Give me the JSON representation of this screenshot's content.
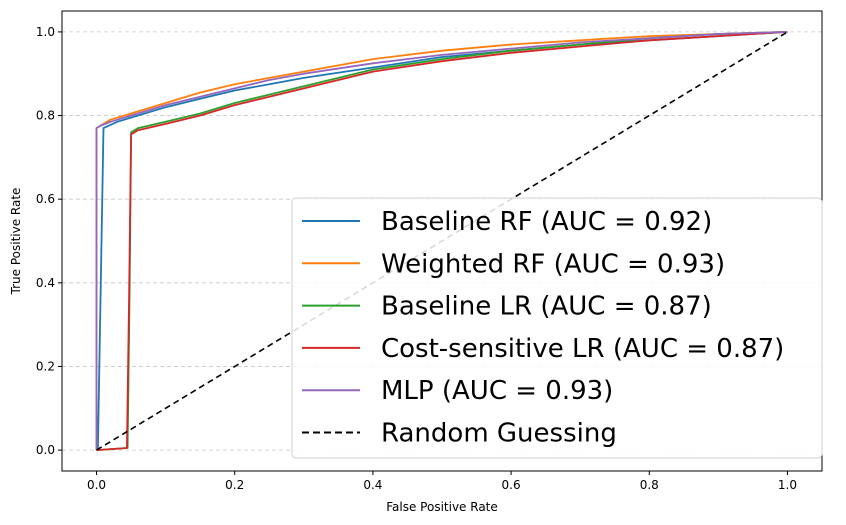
{
  "chart_data": {
    "type": "line",
    "xlabel": "False Positive Rate",
    "ylabel": "True Positive Rate",
    "xlim": [
      -0.05,
      1.05
    ],
    "ylim": [
      -0.05,
      1.05
    ],
    "xticks": [
      "0.0",
      "0.2",
      "0.4",
      "0.6",
      "0.8",
      "1.0"
    ],
    "yticks": [
      "0.0",
      "0.2",
      "0.4",
      "0.6",
      "0.8",
      "1.0"
    ],
    "grid": "horizontal dashed",
    "legend_position": "lower-right",
    "series": [
      {
        "name": "Baseline RF (AUC = 0.92)",
        "color": "#1f77b4",
        "x": [
          0,
          0.002,
          0.01,
          0.03,
          0.06,
          0.1,
          0.15,
          0.2,
          0.25,
          0.3,
          0.4,
          0.5,
          0.6,
          0.7,
          0.8,
          0.9,
          1.0
        ],
        "y": [
          0,
          0.005,
          0.77,
          0.785,
          0.8,
          0.82,
          0.84,
          0.86,
          0.875,
          0.89,
          0.915,
          0.94,
          0.955,
          0.97,
          0.98,
          0.99,
          1.0
        ]
      },
      {
        "name": "Weighted RF (AUC = 0.93)",
        "color": "#ff7f0e",
        "x": [
          0,
          0.0,
          0.005,
          0.02,
          0.05,
          0.1,
          0.15,
          0.2,
          0.25,
          0.3,
          0.4,
          0.5,
          0.6,
          0.7,
          0.8,
          0.9,
          1.0
        ],
        "y": [
          0,
          0.77,
          0.775,
          0.79,
          0.805,
          0.83,
          0.855,
          0.875,
          0.89,
          0.905,
          0.935,
          0.955,
          0.97,
          0.98,
          0.99,
          0.995,
          1.0
        ]
      },
      {
        "name": "Baseline LR (AUC = 0.87)",
        "color": "#2ca02c",
        "x": [
          0,
          0.045,
          0.048,
          0.05,
          0.06,
          0.1,
          0.15,
          0.2,
          0.25,
          0.3,
          0.4,
          0.5,
          0.6,
          0.7,
          0.8,
          0.9,
          1.0
        ],
        "y": [
          0,
          0.005,
          0.4,
          0.76,
          0.77,
          0.785,
          0.805,
          0.83,
          0.85,
          0.87,
          0.91,
          0.935,
          0.955,
          0.97,
          0.985,
          0.995,
          1.0
        ]
      },
      {
        "name": "Cost-sensitive LR (AUC = 0.87)",
        "color": "#d62728",
        "x": [
          0,
          0.044,
          0.047,
          0.05,
          0.06,
          0.1,
          0.15,
          0.2,
          0.25,
          0.3,
          0.4,
          0.5,
          0.6,
          0.7,
          0.8,
          0.9,
          1.0
        ],
        "y": [
          0,
          0.005,
          0.35,
          0.755,
          0.765,
          0.78,
          0.8,
          0.825,
          0.845,
          0.865,
          0.905,
          0.93,
          0.95,
          0.965,
          0.98,
          0.99,
          1.0
        ]
      },
      {
        "name": "MLP (AUC = 0.93)",
        "color": "#9467bd",
        "x": [
          0,
          0.0,
          0.005,
          0.02,
          0.05,
          0.1,
          0.15,
          0.2,
          0.25,
          0.3,
          0.4,
          0.5,
          0.6,
          0.7,
          0.8,
          0.9,
          1.0
        ],
        "y": [
          0,
          0.77,
          0.775,
          0.785,
          0.8,
          0.825,
          0.845,
          0.865,
          0.885,
          0.9,
          0.925,
          0.945,
          0.96,
          0.975,
          0.985,
          0.995,
          1.0
        ]
      },
      {
        "name": "Random Guessing",
        "color": "#000000",
        "dashed": true,
        "x": [
          0,
          1
        ],
        "y": [
          0,
          1
        ]
      }
    ]
  }
}
